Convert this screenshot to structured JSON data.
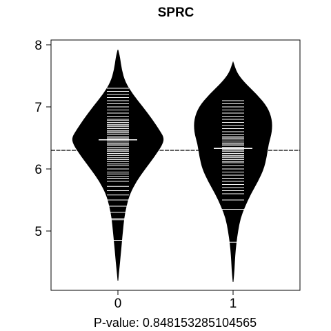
{
  "chart_data": {
    "type": "beanplot",
    "title": "SPRC",
    "xlabel": "P-value: 0.848153285104565",
    "ylabel": "",
    "ylim": [
      4.1,
      8.1
    ],
    "y_ticks": [
      5,
      6,
      7,
      8
    ],
    "y_tick_labels": [
      "5",
      "6",
      "7",
      "8"
    ],
    "categories": [
      "0",
      "1"
    ],
    "overall_mean": 6.3,
    "groups": [
      {
        "label": "0",
        "mean": 6.47,
        "density": [
          [
            4.2,
            0.0
          ],
          [
            4.4,
            0.02
          ],
          [
            4.6,
            0.04
          ],
          [
            4.8,
            0.06
          ],
          [
            5.0,
            0.08
          ],
          [
            5.2,
            0.1
          ],
          [
            5.4,
            0.14
          ],
          [
            5.6,
            0.2
          ],
          [
            5.8,
            0.31
          ],
          [
            6.0,
            0.46
          ],
          [
            6.2,
            0.62
          ],
          [
            6.4,
            0.76
          ],
          [
            6.5,
            0.78
          ],
          [
            6.6,
            0.72
          ],
          [
            6.8,
            0.58
          ],
          [
            7.0,
            0.42
          ],
          [
            7.2,
            0.25
          ],
          [
            7.4,
            0.12
          ],
          [
            7.6,
            0.06
          ],
          [
            7.8,
            0.03
          ],
          [
            7.92,
            0.0
          ]
        ],
        "observations": [
          4.85,
          5.18,
          5.2,
          5.3,
          5.4,
          5.5,
          5.58,
          5.65,
          5.72,
          5.8,
          5.85,
          5.88,
          5.92,
          5.95,
          6.0,
          6.05,
          6.08,
          6.12,
          6.15,
          6.18,
          6.22,
          6.25,
          6.28,
          6.3,
          6.32,
          6.35,
          6.38,
          6.4,
          6.42,
          6.45,
          6.48,
          6.5,
          6.52,
          6.55,
          6.58,
          6.6,
          6.62,
          6.65,
          6.68,
          6.7,
          6.72,
          6.75,
          6.78,
          6.8,
          6.85,
          6.9,
          6.95,
          7.0,
          7.05,
          7.1,
          7.15,
          7.2,
          7.25,
          7.3
        ]
      },
      {
        "label": "1",
        "mean": 6.33,
        "density": [
          [
            4.18,
            0.0
          ],
          [
            4.4,
            0.02
          ],
          [
            4.6,
            0.03
          ],
          [
            4.8,
            0.05
          ],
          [
            5.0,
            0.08
          ],
          [
            5.2,
            0.12
          ],
          [
            5.4,
            0.2
          ],
          [
            5.6,
            0.3
          ],
          [
            5.8,
            0.42
          ],
          [
            6.0,
            0.52
          ],
          [
            6.2,
            0.57
          ],
          [
            6.4,
            0.6
          ],
          [
            6.6,
            0.66
          ],
          [
            6.8,
            0.66
          ],
          [
            7.0,
            0.58
          ],
          [
            7.2,
            0.4
          ],
          [
            7.4,
            0.18
          ],
          [
            7.55,
            0.06
          ],
          [
            7.72,
            0.0
          ]
        ],
        "observations": [
          4.82,
          5.35,
          5.5,
          5.6,
          5.65,
          5.7,
          5.75,
          5.8,
          5.85,
          5.9,
          5.95,
          6.0,
          6.05,
          6.1,
          6.12,
          6.15,
          6.18,
          6.2,
          6.22,
          6.25,
          6.28,
          6.3,
          6.32,
          6.35,
          6.38,
          6.4,
          6.42,
          6.45,
          6.48,
          6.5,
          6.52,
          6.55,
          6.6,
          6.65,
          6.7,
          6.75,
          6.8,
          6.85,
          6.9,
          6.95,
          7.0,
          7.05,
          7.1
        ]
      }
    ],
    "colors": {
      "bean": "#000000",
      "observation_line": "#ffffff",
      "background": "#ffffff"
    },
    "grid": false,
    "legend": "none"
  }
}
